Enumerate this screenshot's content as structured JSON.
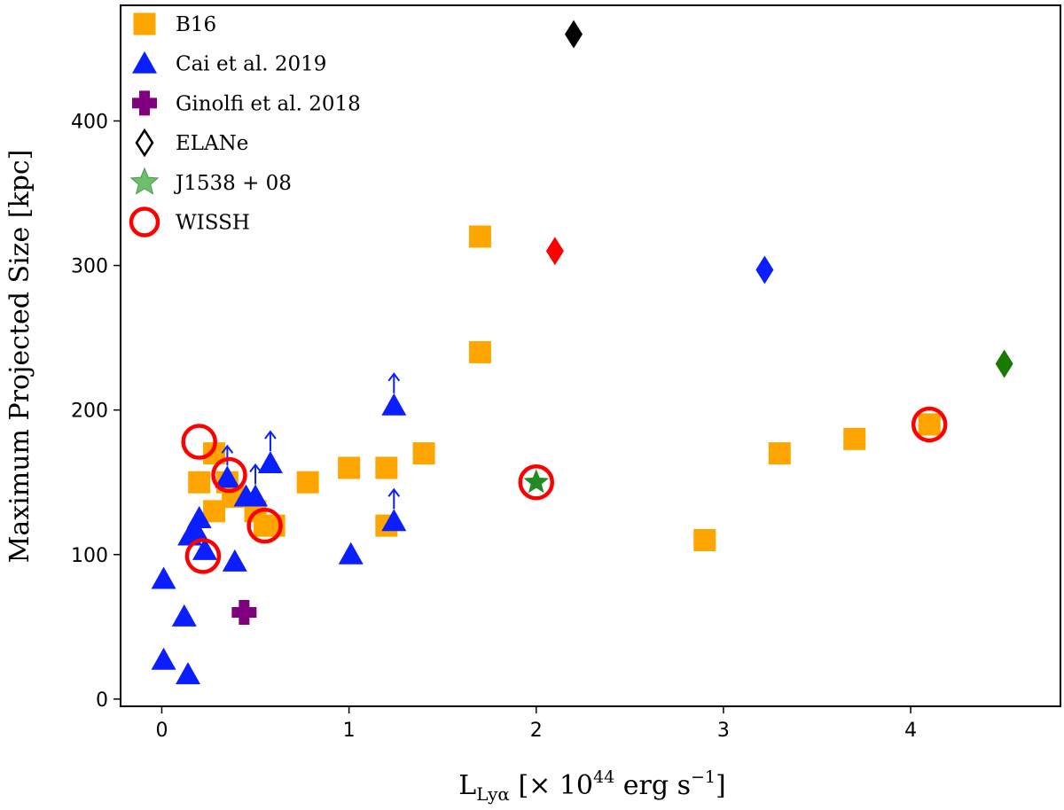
{
  "chart_data": {
    "type": "scatter",
    "title": "",
    "xlabel": {
      "base": "L",
      "sub": "Lyα",
      "rest_open": " [× 10",
      "exp": "44",
      "units": " erg s",
      "units_exp": "−1",
      "close": "]"
    },
    "ylabel": "Maximum Projected Size [kpc]",
    "xlim": [
      -0.22,
      4.8
    ],
    "ylim": [
      -5,
      480
    ],
    "xticks": [
      0,
      1,
      2,
      3,
      4
    ],
    "yticks": [
      0,
      100,
      200,
      300,
      400
    ],
    "grid": false,
    "legend_position": "upper-left",
    "colors": {
      "b16": "#ffa500",
      "cai": "#0a1eff",
      "ginolfi": "#800080",
      "wissh": "#ff0000",
      "star_fill": "#228b22",
      "star_legend": "#6dbf6d"
    },
    "series": [
      {
        "name": "B16",
        "marker": "square",
        "color": "#ffa500",
        "points": [
          {
            "x": 0.2,
            "y": 150
          },
          {
            "x": 0.28,
            "y": 170
          },
          {
            "x": 0.28,
            "y": 130
          },
          {
            "x": 0.35,
            "y": 150
          },
          {
            "x": 0.38,
            "y": 140
          },
          {
            "x": 0.5,
            "y": 130
          },
          {
            "x": 0.55,
            "y": 120
          },
          {
            "x": 0.6,
            "y": 120
          },
          {
            "x": 0.78,
            "y": 150
          },
          {
            "x": 1.0,
            "y": 160
          },
          {
            "x": 1.2,
            "y": 160
          },
          {
            "x": 1.2,
            "y": 120
          },
          {
            "x": 1.4,
            "y": 170
          },
          {
            "x": 1.7,
            "y": 320
          },
          {
            "x": 1.7,
            "y": 240
          },
          {
            "x": 2.9,
            "y": 110
          },
          {
            "x": 3.3,
            "y": 170
          },
          {
            "x": 3.7,
            "y": 180
          },
          {
            "x": 4.1,
            "y": 190
          }
        ]
      },
      {
        "name": "Cai et al. 2019",
        "marker": "triangle",
        "color": "#0a1eff",
        "points": [
          {
            "x": 0.01,
            "y": 83
          },
          {
            "x": 0.01,
            "y": 27
          },
          {
            "x": 0.12,
            "y": 57
          },
          {
            "x": 0.14,
            "y": 17
          },
          {
            "x": 0.15,
            "y": 113
          },
          {
            "x": 0.18,
            "y": 117
          },
          {
            "x": 0.2,
            "y": 125
          },
          {
            "x": 0.23,
            "y": 103
          },
          {
            "x": 0.35,
            "y": 153,
            "lower_limit": true
          },
          {
            "x": 0.39,
            "y": 95
          },
          {
            "x": 0.45,
            "y": 140
          },
          {
            "x": 0.5,
            "y": 140,
            "lower_limit": true
          },
          {
            "x": 0.58,
            "y": 163,
            "lower_limit": true
          },
          {
            "x": 1.01,
            "y": 100
          },
          {
            "x": 1.24,
            "y": 203,
            "lower_limit": true
          },
          {
            "x": 1.24,
            "y": 123,
            "lower_limit": true
          }
        ]
      },
      {
        "name": "Ginolfi et al. 2018",
        "marker": "plus",
        "color": "#800080",
        "points": [
          {
            "x": 0.44,
            "y": 60
          }
        ]
      },
      {
        "name": "ELANe",
        "marker": "diamond",
        "color": "#000000",
        "points": [
          {
            "x": 2.2,
            "y": 460,
            "color": "#000000"
          },
          {
            "x": 2.1,
            "y": 310,
            "color": "#ff0000"
          },
          {
            "x": 3.22,
            "y": 297,
            "color": "#0a1eff"
          },
          {
            "x": 4.5,
            "y": 232,
            "color": "#1a7a00"
          }
        ]
      },
      {
        "name": "J1538 + 08",
        "marker": "star",
        "color": "#228b22",
        "points": [
          {
            "x": 2.0,
            "y": 150
          }
        ]
      },
      {
        "name": "WISSH",
        "marker": "circle",
        "color": "#ff0000",
        "points": [
          {
            "x": 0.2,
            "y": 178
          },
          {
            "x": 0.36,
            "y": 155
          },
          {
            "x": 0.22,
            "y": 99
          },
          {
            "x": 0.55,
            "y": 120
          },
          {
            "x": 2.0,
            "y": 150
          },
          {
            "x": 4.1,
            "y": 190
          }
        ]
      }
    ]
  }
}
